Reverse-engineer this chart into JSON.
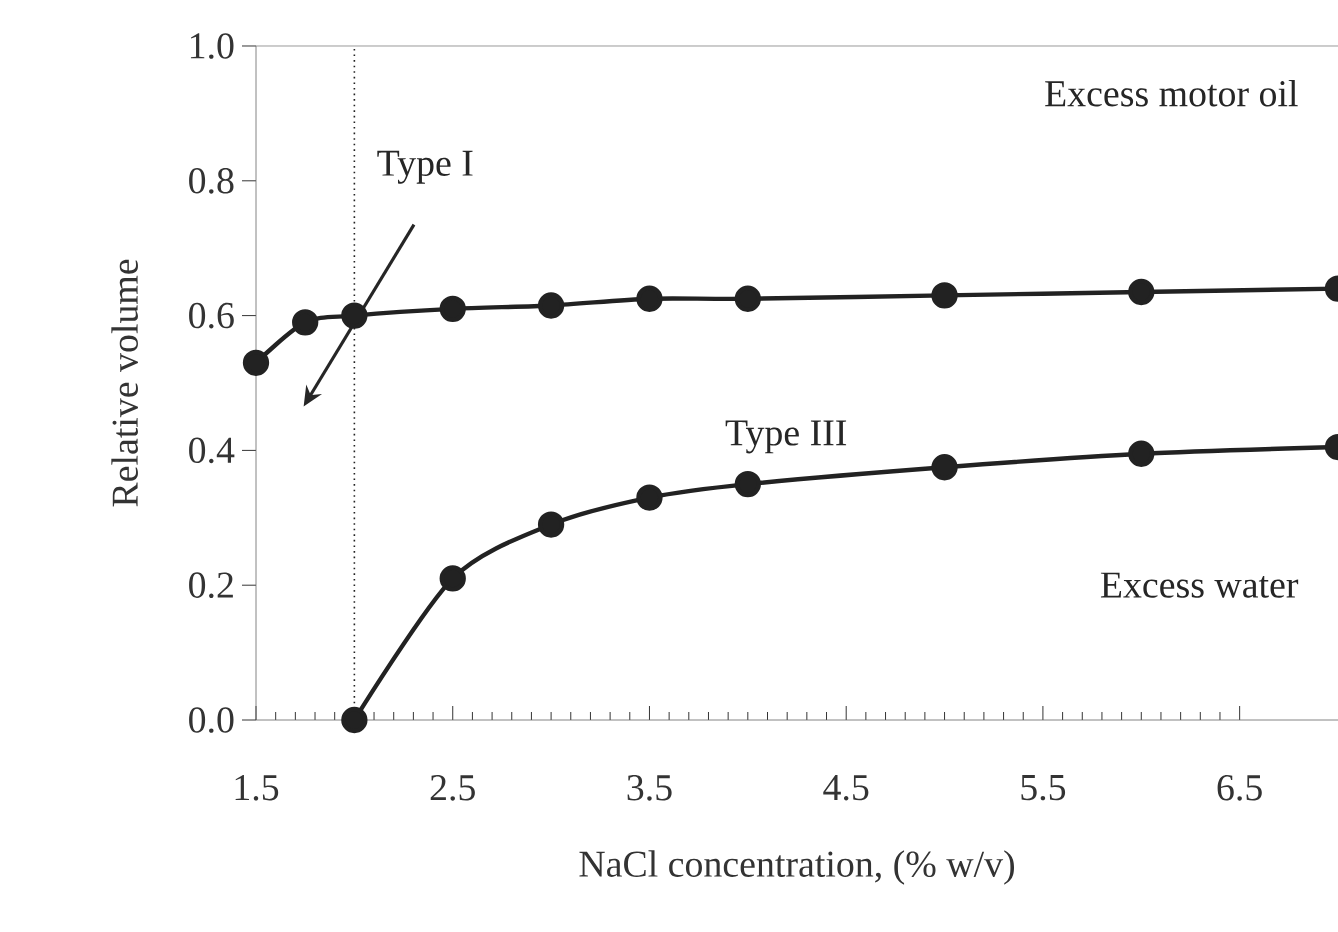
{
  "chart_data": {
    "type": "line",
    "xlabel": "NaCl concentration, (% w/v)",
    "ylabel": "Relative volume",
    "xlim": [
      1.5,
      7.0
    ],
    "ylim": [
      0,
      1.0
    ],
    "xticks": [
      1.5,
      2.5,
      3.5,
      4.5,
      5.5,
      6.5
    ],
    "yticks": [
      {
        "value": 0,
        "label": "0.0"
      },
      {
        "value": 0.2,
        "label": "0.2"
      },
      {
        "value": 0.4,
        "label": "0.4"
      },
      {
        "value": 0.6,
        "label": "0.6"
      },
      {
        "value": 0.8,
        "label": "0.8"
      },
      {
        "value": 1.0,
        "label": "1.0"
      }
    ],
    "series": [
      {
        "color": "#222222",
        "x": [
          1.5,
          1.75,
          2.0,
          2.5,
          3.0,
          3.5,
          4.0,
          5.0,
          6.0,
          7.0
        ],
        "values": [
          0.53,
          0.59,
          0.6,
          0.61,
          0.615,
          0.625,
          0.625,
          0.63,
          0.635,
          0.64
        ]
      },
      {
        "color": "#222222",
        "x": [
          2.0,
          2.5,
          3.0,
          3.5,
          4.0,
          5.0,
          6.0,
          7.0
        ],
        "values": [
          0.0,
          0.21,
          0.29,
          0.33,
          0.35,
          0.375,
          0.395,
          0.405
        ]
      }
    ],
    "ref_lines": [
      {
        "axis": "x",
        "value": 2.0,
        "line_style": "dotted",
        "color": "#222222"
      }
    ],
    "annotations": [
      "Excess motor oil",
      "Type I",
      "Type III",
      "Excess water"
    ],
    "marker": "circle",
    "line_style": "solid",
    "grid": false
  }
}
